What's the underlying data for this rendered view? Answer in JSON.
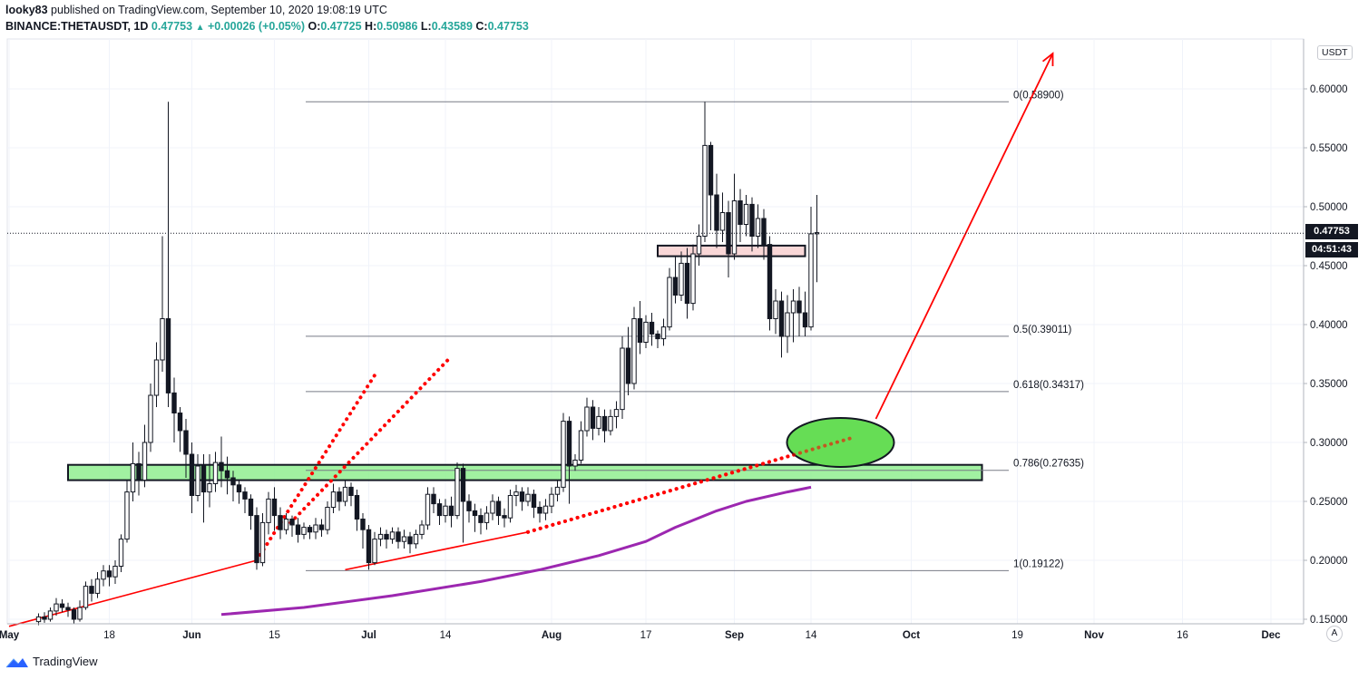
{
  "header": {
    "user": "looky83",
    "published": "published on TradingView.com, September 10, 2020 19:08:19 UTC",
    "symbol": "BINANCE:THETAUSDT, 1D",
    "last": "0.47753",
    "change": "+0.00026 (+0.05%)",
    "o_label": "O:",
    "o": "0.47725",
    "h_label": "H:",
    "h": "0.50986",
    "l_label": "L:",
    "l": "0.43589",
    "c_label": "C:",
    "c": "0.47753"
  },
  "axis": {
    "currency_label": "USDT",
    "current_price": "0.47753",
    "countdown": "04:51:43",
    "auto_button": "A"
  },
  "footer": {
    "brand": "TradingView"
  },
  "colors": {
    "up_candle": "#ffffff",
    "down_candle": "#131722",
    "trend_line": "#ff0000",
    "ma_line": "#9c27b0",
    "support_zone": "#90ee90",
    "resistance_zone": "#f8d0d0",
    "target_ellipse": "#66dd55"
  },
  "chart_data": {
    "type": "candlestick",
    "title": "BINANCE:THETAUSDT, 1D",
    "ylabel": "USDT",
    "ylim": [
      0.145,
      0.635
    ],
    "y_ticks": [
      "0.15000",
      "0.20000",
      "0.25000",
      "0.30000",
      "0.35000",
      "0.40000",
      "0.45000",
      "0.50000",
      "0.55000",
      "0.60000"
    ],
    "x_tick_labels": [
      {
        "label": "May",
        "day": 0
      },
      {
        "label": "18",
        "day": 17
      },
      {
        "label": "Jun",
        "day": 31
      },
      {
        "label": "15",
        "day": 45
      },
      {
        "label": "Jul",
        "day": 61
      },
      {
        "label": "14",
        "day": 74
      },
      {
        "label": "Aug",
        "day": 92
      },
      {
        "label": "17",
        "day": 108
      },
      {
        "label": "Sep",
        "day": 123
      },
      {
        "label": "14",
        "day": 136
      },
      {
        "label": "Oct",
        "day": 153
      },
      {
        "label": "19",
        "day": 171
      },
      {
        "label": "Nov",
        "day": 184
      },
      {
        "label": "16",
        "day": 199
      },
      {
        "label": "Dec",
        "day": 214
      }
    ],
    "fib_levels": [
      {
        "label": "0(0.58900)",
        "value": 0.589
      },
      {
        "label": "0.5(0.39011)",
        "value": 0.39011
      },
      {
        "label": "0.618(0.34317)",
        "value": 0.34317
      },
      {
        "label": "0.786(0.27635)",
        "value": 0.27635
      },
      {
        "label": "1(0.19122)",
        "value": 0.19122
      }
    ],
    "candles": [
      [
        5,
        0.148,
        0.152,
        0.145,
        0.155
      ],
      [
        6,
        0.152,
        0.15,
        0.147,
        0.156
      ],
      [
        7,
        0.15,
        0.157,
        0.148,
        0.16
      ],
      [
        8,
        0.157,
        0.163,
        0.153,
        0.168
      ],
      [
        9,
        0.163,
        0.16,
        0.156,
        0.167
      ],
      [
        10,
        0.16,
        0.158,
        0.152,
        0.164
      ],
      [
        11,
        0.158,
        0.15,
        0.146,
        0.16
      ],
      [
        12,
        0.15,
        0.16,
        0.148,
        0.166
      ],
      [
        13,
        0.16,
        0.178,
        0.158,
        0.182
      ],
      [
        14,
        0.178,
        0.172,
        0.165,
        0.184
      ],
      [
        15,
        0.172,
        0.184,
        0.168,
        0.19
      ],
      [
        16,
        0.184,
        0.191,
        0.178,
        0.196
      ],
      [
        17,
        0.191,
        0.186,
        0.178,
        0.196
      ],
      [
        18,
        0.186,
        0.195,
        0.18,
        0.2
      ],
      [
        19,
        0.195,
        0.218,
        0.19,
        0.222
      ],
      [
        20,
        0.218,
        0.258,
        0.215,
        0.268
      ],
      [
        21,
        0.258,
        0.282,
        0.25,
        0.3
      ],
      [
        22,
        0.282,
        0.268,
        0.255,
        0.292
      ],
      [
        23,
        0.268,
        0.3,
        0.262,
        0.315
      ],
      [
        24,
        0.3,
        0.34,
        0.292,
        0.35
      ],
      [
        25,
        0.34,
        0.37,
        0.33,
        0.385
      ],
      [
        26,
        0.37,
        0.405,
        0.36,
        0.475
      ],
      [
        27,
        0.405,
        0.342,
        0.33,
        0.589
      ],
      [
        28,
        0.342,
        0.325,
        0.3,
        0.355
      ],
      [
        29,
        0.325,
        0.31,
        0.292,
        0.33
      ],
      [
        30,
        0.31,
        0.29,
        0.27,
        0.32
      ],
      [
        31,
        0.29,
        0.255,
        0.24,
        0.3
      ],
      [
        32,
        0.255,
        0.28,
        0.25,
        0.29
      ],
      [
        33,
        0.28,
        0.258,
        0.232,
        0.29
      ],
      [
        34,
        0.258,
        0.265,
        0.245,
        0.29
      ],
      [
        35,
        0.265,
        0.283,
        0.258,
        0.292
      ],
      [
        36,
        0.283,
        0.276,
        0.262,
        0.305
      ],
      [
        37,
        0.276,
        0.27,
        0.256,
        0.288
      ],
      [
        38,
        0.27,
        0.264,
        0.25,
        0.276
      ],
      [
        39,
        0.264,
        0.258,
        0.248,
        0.268
      ],
      [
        40,
        0.258,
        0.252,
        0.24,
        0.262
      ],
      [
        41,
        0.252,
        0.238,
        0.226,
        0.256
      ],
      [
        42,
        0.238,
        0.198,
        0.192,
        0.245
      ],
      [
        43,
        0.198,
        0.232,
        0.195,
        0.24
      ],
      [
        44,
        0.232,
        0.252,
        0.222,
        0.258
      ],
      [
        45,
        0.252,
        0.238,
        0.225,
        0.262
      ],
      [
        46,
        0.238,
        0.226,
        0.218,
        0.245
      ],
      [
        47,
        0.226,
        0.235,
        0.222,
        0.24
      ],
      [
        48,
        0.235,
        0.23,
        0.22,
        0.238
      ],
      [
        49,
        0.23,
        0.222,
        0.215,
        0.236
      ],
      [
        50,
        0.222,
        0.228,
        0.218,
        0.232
      ],
      [
        51,
        0.228,
        0.224,
        0.218,
        0.23
      ],
      [
        52,
        0.224,
        0.23,
        0.218,
        0.236
      ],
      [
        53,
        0.23,
        0.226,
        0.22,
        0.235
      ],
      [
        54,
        0.226,
        0.245,
        0.222,
        0.25
      ],
      [
        55,
        0.245,
        0.258,
        0.24,
        0.265
      ],
      [
        56,
        0.258,
        0.25,
        0.242,
        0.262
      ],
      [
        57,
        0.25,
        0.262,
        0.246,
        0.268
      ],
      [
        58,
        0.262,
        0.255,
        0.246,
        0.266
      ],
      [
        59,
        0.255,
        0.235,
        0.225,
        0.26
      ],
      [
        60,
        0.235,
        0.226,
        0.21,
        0.24
      ],
      [
        61,
        0.226,
        0.198,
        0.192,
        0.23
      ],
      [
        62,
        0.198,
        0.218,
        0.196,
        0.224
      ],
      [
        63,
        0.218,
        0.222,
        0.212,
        0.228
      ],
      [
        64,
        0.222,
        0.218,
        0.21,
        0.226
      ],
      [
        65,
        0.218,
        0.224,
        0.214,
        0.228
      ],
      [
        66,
        0.224,
        0.216,
        0.21,
        0.228
      ],
      [
        67,
        0.216,
        0.22,
        0.21,
        0.226
      ],
      [
        68,
        0.22,
        0.214,
        0.206,
        0.224
      ],
      [
        69,
        0.214,
        0.222,
        0.21,
        0.226
      ],
      [
        70,
        0.222,
        0.23,
        0.218,
        0.234
      ],
      [
        71,
        0.23,
        0.256,
        0.226,
        0.262
      ],
      [
        72,
        0.256,
        0.248,
        0.24,
        0.262
      ],
      [
        73,
        0.248,
        0.238,
        0.23,
        0.252
      ],
      [
        74,
        0.238,
        0.246,
        0.232,
        0.252
      ],
      [
        75,
        0.246,
        0.238,
        0.228,
        0.254
      ],
      [
        76,
        0.238,
        0.278,
        0.235,
        0.283
      ],
      [
        77,
        0.278,
        0.25,
        0.215,
        0.282
      ],
      [
        78,
        0.25,
        0.242,
        0.232,
        0.256
      ],
      [
        79,
        0.242,
        0.238,
        0.224,
        0.248
      ],
      [
        80,
        0.238,
        0.232,
        0.222,
        0.244
      ],
      [
        81,
        0.232,
        0.24,
        0.226,
        0.246
      ],
      [
        82,
        0.24,
        0.25,
        0.234,
        0.256
      ],
      [
        83,
        0.25,
        0.238,
        0.23,
        0.254
      ],
      [
        84,
        0.238,
        0.236,
        0.228,
        0.244
      ],
      [
        85,
        0.236,
        0.255,
        0.232,
        0.26
      ],
      [
        86,
        0.255,
        0.258,
        0.246,
        0.264
      ],
      [
        87,
        0.258,
        0.25,
        0.242,
        0.262
      ],
      [
        88,
        0.25,
        0.256,
        0.246,
        0.262
      ],
      [
        89,
        0.256,
        0.245,
        0.236,
        0.26
      ],
      [
        90,
        0.245,
        0.24,
        0.232,
        0.25
      ],
      [
        91,
        0.24,
        0.246,
        0.234,
        0.252
      ],
      [
        92,
        0.246,
        0.256,
        0.24,
        0.262
      ],
      [
        93,
        0.256,
        0.262,
        0.25,
        0.268
      ],
      [
        94,
        0.262,
        0.318,
        0.258,
        0.325
      ],
      [
        95,
        0.318,
        0.28,
        0.248,
        0.322
      ],
      [
        96,
        0.28,
        0.285,
        0.276,
        0.29
      ],
      [
        97,
        0.285,
        0.31,
        0.282,
        0.318
      ],
      [
        98,
        0.31,
        0.33,
        0.305,
        0.338
      ],
      [
        99,
        0.33,
        0.312,
        0.302,
        0.336
      ],
      [
        100,
        0.312,
        0.322,
        0.306,
        0.33
      ],
      [
        101,
        0.322,
        0.31,
        0.3,
        0.328
      ],
      [
        102,
        0.31,
        0.322,
        0.306,
        0.328
      ],
      [
        103,
        0.322,
        0.328,
        0.312,
        0.335
      ],
      [
        104,
        0.328,
        0.38,
        0.32,
        0.39
      ],
      [
        105,
        0.38,
        0.35,
        0.34,
        0.398
      ],
      [
        106,
        0.35,
        0.405,
        0.345,
        0.415
      ],
      [
        107,
        0.405,
        0.385,
        0.375,
        0.42
      ],
      [
        108,
        0.385,
        0.402,
        0.38,
        0.408
      ],
      [
        109,
        0.402,
        0.392,
        0.382,
        0.41
      ],
      [
        110,
        0.392,
        0.388,
        0.38,
        0.395
      ],
      [
        111,
        0.388,
        0.398,
        0.382,
        0.405
      ],
      [
        112,
        0.398,
        0.44,
        0.395,
        0.448
      ],
      [
        113,
        0.44,
        0.425,
        0.418,
        0.458
      ],
      [
        114,
        0.425,
        0.452,
        0.42,
        0.462
      ],
      [
        115,
        0.452,
        0.418,
        0.405,
        0.465
      ],
      [
        116,
        0.418,
        0.46,
        0.412,
        0.468
      ],
      [
        117,
        0.46,
        0.475,
        0.45,
        0.485
      ],
      [
        118,
        0.475,
        0.552,
        0.47,
        0.589
      ],
      [
        119,
        0.552,
        0.51,
        0.48,
        0.555
      ],
      [
        120,
        0.51,
        0.48,
        0.465,
        0.528
      ],
      [
        121,
        0.48,
        0.495,
        0.47,
        0.512
      ],
      [
        122,
        0.495,
        0.46,
        0.44,
        0.505
      ],
      [
        123,
        0.46,
        0.505,
        0.455,
        0.528
      ],
      [
        124,
        0.505,
        0.485,
        0.47,
        0.515
      ],
      [
        125,
        0.485,
        0.502,
        0.475,
        0.51
      ],
      [
        126,
        0.502,
        0.475,
        0.462,
        0.508
      ],
      [
        127,
        0.475,
        0.49,
        0.465,
        0.502
      ],
      [
        128,
        0.49,
        0.468,
        0.455,
        0.498
      ],
      [
        129,
        0.468,
        0.405,
        0.395,
        0.475
      ],
      [
        130,
        0.405,
        0.42,
        0.392,
        0.43
      ],
      [
        131,
        0.42,
        0.39,
        0.372,
        0.428
      ],
      [
        132,
        0.39,
        0.41,
        0.376,
        0.425
      ],
      [
        133,
        0.41,
        0.42,
        0.385,
        0.43
      ],
      [
        134,
        0.42,
        0.41,
        0.39,
        0.432
      ],
      [
        135,
        0.41,
        0.398,
        0.39,
        0.428
      ],
      [
        136,
        0.398,
        0.477,
        0.395,
        0.5
      ],
      [
        137,
        0.477,
        0.478,
        0.436,
        0.51
      ]
    ],
    "ma_line": [
      [
        36,
        0.154
      ],
      [
        50,
        0.16
      ],
      [
        65,
        0.17
      ],
      [
        80,
        0.182
      ],
      [
        90,
        0.192
      ],
      [
        100,
        0.204
      ],
      [
        108,
        0.216
      ],
      [
        113,
        0.228
      ],
      [
        120,
        0.242
      ],
      [
        125,
        0.25
      ],
      [
        132,
        0.258
      ],
      [
        136,
        0.262
      ]
    ],
    "trendlines": [
      {
        "from": [
          0,
          0.144
        ],
        "to": [
          42,
          0.2
        ],
        "style": "solid"
      },
      {
        "from": [
          57,
          0.192
        ],
        "to": [
          88,
          0.224
        ],
        "style": "solid"
      },
      {
        "from": [
          88,
          0.224
        ],
        "to": [
          143,
          0.304
        ],
        "style": "dotted"
      },
      {
        "from": [
          42,
          0.2
        ],
        "to": [
          62,
          0.357
        ],
        "style": "dotted"
      },
      {
        "from": [
          47,
          0.228
        ],
        "to": [
          75,
          0.373
        ],
        "style": "dotted"
      }
    ],
    "zones": [
      {
        "name": "support",
        "from_day": 10,
        "to_day": 165,
        "low": 0.268,
        "high": 0.281
      },
      {
        "name": "resistance",
        "from_day": 110,
        "to_day": 135,
        "low": 0.458,
        "high": 0.467
      }
    ],
    "projection_arrow": {
      "from": [
        147,
        0.32
      ],
      "to": [
        177,
        0.63
      ]
    },
    "target_ellipse": {
      "center_day": 141,
      "center_value": 0.3,
      "label": ""
    }
  }
}
